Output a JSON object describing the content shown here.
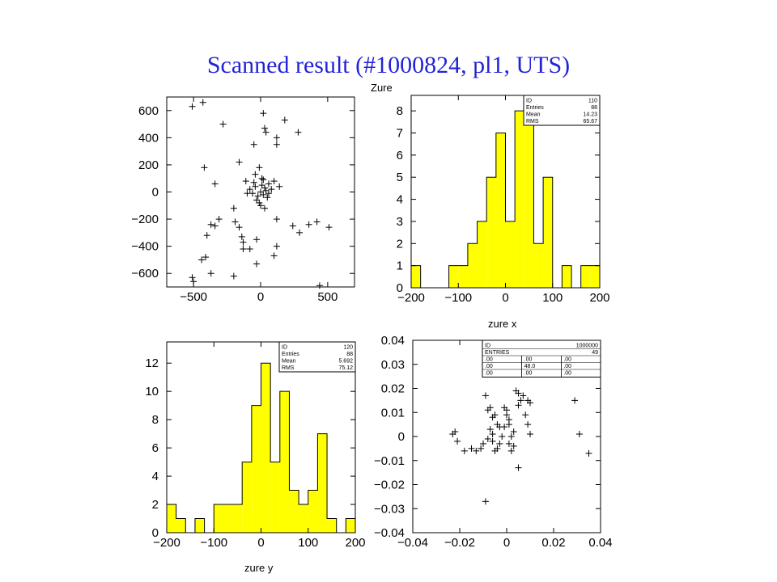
{
  "page": {
    "title": "Scanned result (#1000824, pl1, UTS)"
  },
  "colors": {
    "fill": "#ffff00",
    "frame": "#000000",
    "title": "#2323d8"
  },
  "chart_data": [
    {
      "type": "scatter",
      "xlim": [
        -700,
        700
      ],
      "ylim": [
        -700,
        700
      ],
      "xticks": [
        -500,
        0,
        500
      ],
      "yticks": [
        -600,
        -400,
        -200,
        0,
        200,
        400,
        600
      ],
      "xlabel": "",
      "ylabel": "",
      "points": [
        [
          -510,
          630
        ],
        [
          -430,
          660
        ],
        [
          -280,
          500
        ],
        [
          -50,
          350
        ],
        [
          20,
          580
        ],
        [
          30,
          470
        ],
        [
          40,
          440
        ],
        [
          180,
          530
        ],
        [
          280,
          440
        ],
        [
          120,
          400
        ],
        [
          120,
          350
        ],
        [
          -160,
          220
        ],
        [
          -420,
          180
        ],
        [
          -340,
          60
        ],
        [
          -110,
          80
        ],
        [
          -10,
          180
        ],
        [
          -40,
          130
        ],
        [
          10,
          100
        ],
        [
          100,
          80
        ],
        [
          -80,
          20
        ],
        [
          -60,
          -10
        ],
        [
          -40,
          40
        ],
        [
          -20,
          -30
        ],
        [
          0,
          0
        ],
        [
          10,
          50
        ],
        [
          20,
          -20
        ],
        [
          30,
          30
        ],
        [
          40,
          10
        ],
        [
          50,
          -40
        ],
        [
          60,
          60
        ],
        [
          -30,
          -60
        ],
        [
          -10,
          -80
        ],
        [
          80,
          20
        ],
        [
          -100,
          -10
        ],
        [
          0,
          -100
        ],
        [
          30,
          -120
        ],
        [
          140,
          40
        ],
        [
          -50,
          70
        ],
        [
          20,
          90
        ],
        [
          60,
          -10
        ],
        [
          -200,
          -120
        ],
        [
          -190,
          -220
        ],
        [
          -310,
          -200
        ],
        [
          -370,
          -240
        ],
        [
          -340,
          -250
        ],
        [
          -400,
          -320
        ],
        [
          -160,
          -260
        ],
        [
          -140,
          -330
        ],
        [
          -130,
          -370
        ],
        [
          -80,
          -420
        ],
        [
          -130,
          -420
        ],
        [
          -30,
          -350
        ],
        [
          120,
          -200
        ],
        [
          120,
          -400
        ],
        [
          100,
          -470
        ],
        [
          -30,
          -530
        ],
        [
          -410,
          -480
        ],
        [
          -440,
          -500
        ],
        [
          -370,
          -600
        ],
        [
          -200,
          -620
        ],
        [
          -510,
          -630
        ],
        [
          -500,
          -660
        ],
        [
          240,
          -250
        ],
        [
          290,
          -300
        ],
        [
          360,
          -240
        ],
        [
          420,
          -220
        ],
        [
          510,
          -260
        ],
        [
          440,
          -690
        ]
      ]
    },
    {
      "type": "bar",
      "histogram": true,
      "title": "Zure",
      "xlabel": "zure x",
      "ylabel": "",
      "xlim": [
        -200,
        200
      ],
      "ylim": [
        0,
        8.7
      ],
      "xticks": [
        -200,
        -100,
        0,
        100,
        200
      ],
      "yticks": [
        0,
        1,
        2,
        3,
        4,
        5,
        6,
        7,
        8
      ],
      "bin_edges": [
        -200,
        -180,
        -160,
        -140,
        -120,
        -100,
        -80,
        -60,
        -40,
        -20,
        0,
        20,
        40,
        60,
        80,
        100,
        120,
        140,
        160,
        180,
        200
      ],
      "values": [
        1,
        0,
        0,
        0,
        1,
        1,
        2,
        3,
        5,
        7,
        3,
        8,
        8,
        2,
        5,
        0,
        1,
        0,
        1,
        1
      ],
      "stats": [
        [
          "ID",
          "110"
        ],
        [
          "Entries",
          "88"
        ],
        [
          "Mean",
          "14.23"
        ],
        [
          "RMS",
          "65.67"
        ]
      ]
    },
    {
      "type": "bar",
      "histogram": true,
      "xlabel": "zure y",
      "ylabel": "",
      "xlim": [
        -200,
        200
      ],
      "ylim": [
        0,
        13.5
      ],
      "xticks": [
        -200,
        -100,
        0,
        100,
        200
      ],
      "yticks": [
        0,
        2,
        4,
        6,
        8,
        10,
        12
      ],
      "bin_edges": [
        -200,
        -180,
        -160,
        -140,
        -120,
        -100,
        -80,
        -60,
        -40,
        -20,
        0,
        20,
        40,
        60,
        80,
        100,
        120,
        140,
        160,
        180,
        200
      ],
      "values": [
        2,
        1,
        0,
        1,
        0,
        2,
        2,
        2,
        5,
        9,
        12,
        5,
        10,
        3,
        2,
        3,
        7,
        1,
        0,
        1
      ],
      "stats": [
        [
          "ID",
          "120"
        ],
        [
          "Entries",
          "88"
        ],
        [
          "Mean",
          "5.692"
        ],
        [
          "RMS",
          "75.12"
        ]
      ]
    },
    {
      "type": "scatter",
      "xlabel": "",
      "ylabel": "",
      "xlim": [
        -0.04,
        0.04
      ],
      "ylim": [
        -0.04,
        0.04
      ],
      "xticks": [
        "-0.04",
        "-0.02",
        "0",
        "0.02",
        "0.04"
      ],
      "yticks": [
        "-0.04",
        "-0.03",
        "-0.02",
        "-0.01",
        "0",
        "0.01",
        "0.02",
        "0.03",
        "0.04"
      ],
      "points": [
        [
          -0.009,
          0.017
        ],
        [
          -0.008,
          0.011
        ],
        [
          -0.007,
          0.012
        ],
        [
          -0.006,
          0.008
        ],
        [
          -0.005,
          0.009
        ],
        [
          -0.007,
          0.003
        ],
        [
          -0.006,
          0.001
        ],
        [
          -0.004,
          0.005
        ],
        [
          -0.003,
          0.004
        ],
        [
          -0.002,
          0.0
        ],
        [
          -0.003,
          -0.003
        ],
        [
          -0.004,
          -0.005
        ],
        [
          -0.005,
          -0.006
        ],
        [
          -0.006,
          -0.002
        ],
        [
          -0.008,
          -0.001
        ],
        [
          -0.01,
          -0.003
        ],
        [
          -0.011,
          -0.005
        ],
        [
          -0.013,
          -0.006
        ],
        [
          -0.015,
          -0.005
        ],
        [
          -0.018,
          -0.006
        ],
        [
          -0.023,
          0.001
        ],
        [
          -0.022,
          0.002
        ],
        [
          -0.021,
          -0.002
        ],
        [
          -0.009,
          -0.027
        ],
        [
          0.002,
          0.0
        ],
        [
          -0.001,
          0.012
        ],
        [
          0.0,
          0.011
        ],
        [
          0.0,
          0.009
        ],
        [
          0.001,
          0.007
        ],
        [
          0.001,
          0.005
        ],
        [
          -0.001,
          0.004
        ],
        [
          0.003,
          0.002
        ],
        [
          0.004,
          0.019
        ],
        [
          0.005,
          0.018
        ],
        [
          0.006,
          0.015
        ],
        [
          0.005,
          0.013
        ],
        [
          0.007,
          0.017
        ],
        [
          0.009,
          0.015
        ],
        [
          0.01,
          0.014
        ],
        [
          0.008,
          0.009
        ],
        [
          0.009,
          0.005
        ],
        [
          0.01,
          0.001
        ],
        [
          0.001,
          -0.003
        ],
        [
          0.002,
          -0.006
        ],
        [
          0.003,
          -0.004
        ],
        [
          0.005,
          -0.013
        ],
        [
          0.029,
          0.015
        ],
        [
          0.031,
          0.001
        ],
        [
          0.035,
          -0.007
        ]
      ],
      "stats_table": [
        [
          "ID",
          "1000000",
          ""
        ],
        [
          "ENTRIES",
          "49",
          ""
        ],
        [
          ".00",
          ".00",
          ".00"
        ],
        [
          ".00",
          "48.0",
          ".00"
        ],
        [
          ".00",
          ".00",
          ".00"
        ]
      ]
    }
  ]
}
